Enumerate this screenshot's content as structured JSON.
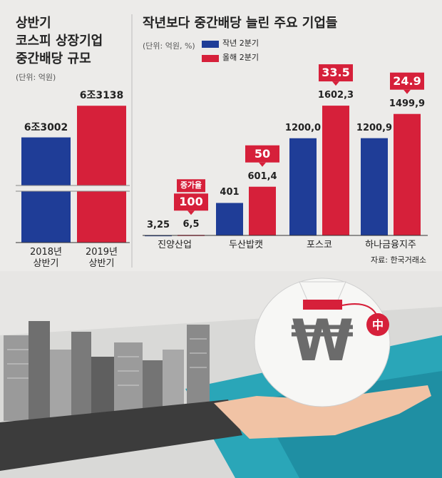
{
  "chart_data": [
    {
      "type": "bar",
      "title": [
        "상반기",
        "코스피 상장기업",
        "중간배당 규모"
      ],
      "unit": "(단위: 억원)",
      "categories": [
        "2018년 상반기",
        "2019년 상반기"
      ],
      "values": [
        63002,
        63138
      ],
      "value_labels": [
        "6조3002",
        "6조3138"
      ],
      "colors": [
        "#1f3d97",
        "#d6203a"
      ],
      "ylim": [
        62550,
        63200
      ],
      "axis_break": true
    },
    {
      "type": "grouped-bar",
      "title": "작년보다 중간배당 늘린 주요 기업들",
      "unit": "(단위: 억원, %)",
      "categories": [
        "진양산업",
        "두산밥캣",
        "포스코",
        "하나금융지주"
      ],
      "series": [
        {
          "name": "작년 2분기",
          "color": "#1f3d97",
          "values": [
            3.25,
            401,
            1200.0,
            1200.9
          ],
          "value_labels": [
            "3,25",
            "401",
            "1200,0",
            "1200,9"
          ]
        },
        {
          "name": "올해 2분기",
          "color": "#d6203a",
          "values": [
            6.5,
            601.4,
            1602.3,
            1499.9
          ],
          "value_labels": [
            "6,5",
            "601,4",
            "1602,3",
            "1499,9"
          ]
        }
      ],
      "rate_label": "증가율",
      "rates": [
        100,
        50,
        33.5,
        24.9
      ],
      "ylim": [
        0,
        1700
      ],
      "source": "자료: 한국거래소"
    }
  ],
  "illustration": {
    "bag_symbol": "₩",
    "tag": "中"
  }
}
